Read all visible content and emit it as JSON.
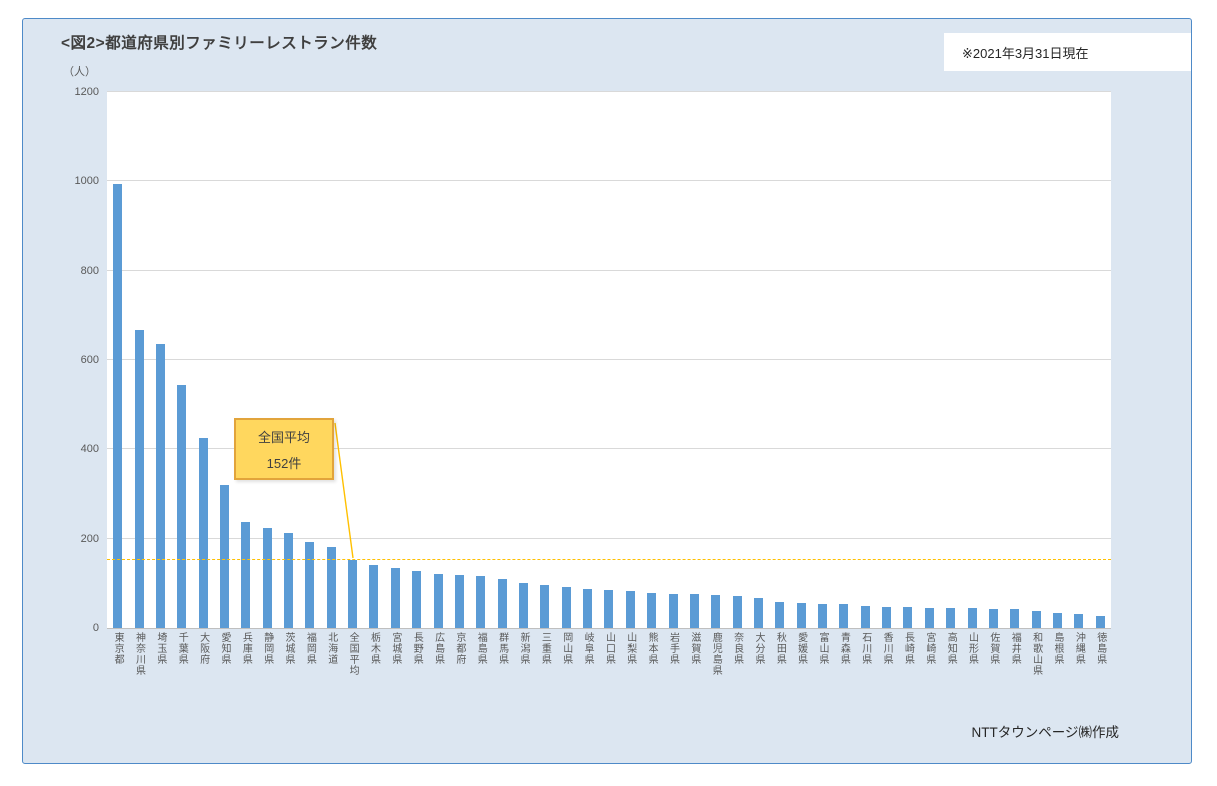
{
  "card": {
    "background": "#DCE6F1",
    "border_color": "#4E8AC8"
  },
  "header": {
    "title": "<図2>都道府県別ファミリーレストラン件数",
    "unit_label": "（人）",
    "date_note": "※2021年3月31日現在"
  },
  "footer": {
    "credit": "NTTタウンページ㈱作成"
  },
  "chart_data": {
    "type": "bar",
    "title": "<図2>都道府県別ファミリーレストラン件数",
    "ylabel": "（人）",
    "ylim": [
      0,
      1200
    ],
    "yticks": [
      0,
      200,
      400,
      600,
      800,
      1000,
      1200
    ],
    "grid": true,
    "legend": "none",
    "bar_color": "#5B9BD5",
    "categories": [
      "東京都",
      "神奈川県",
      "埼玉県",
      "千葉県",
      "大阪府",
      "愛知県",
      "兵庫県",
      "静岡県",
      "茨城県",
      "福岡県",
      "北海道",
      "全国平均",
      "栃木県",
      "宮城県",
      "長野県",
      "広島県",
      "京都府",
      "福島県",
      "群馬県",
      "新潟県",
      "三重県",
      "岡山県",
      "岐阜県",
      "山口県",
      "山梨県",
      "熊本県",
      "岩手県",
      "滋賀県",
      "鹿児島県",
      "奈良県",
      "大分県",
      "秋田県",
      "愛媛県",
      "富山県",
      "青森県",
      "石川県",
      "香川県",
      "長崎県",
      "宮崎県",
      "高知県",
      "山形県",
      "佐賀県",
      "福井県",
      "和歌山県",
      "島根県",
      "沖縄県",
      "徳島県"
    ],
    "values": [
      993,
      667,
      636,
      545,
      425,
      320,
      237,
      224,
      213,
      193,
      181,
      152,
      141,
      135,
      128,
      120,
      119,
      116,
      109,
      100,
      97,
      91,
      87,
      86,
      82,
      78,
      76,
      75,
      74,
      71,
      67,
      58,
      55,
      54,
      53,
      49,
      48,
      47,
      45,
      44,
      44,
      43,
      42,
      37,
      34,
      31,
      26
    ],
    "average_line": {
      "value": 152,
      "color": "#FFC000",
      "style": "dashed"
    },
    "annotation": {
      "lines": [
        "全国平均",
        "152件"
      ],
      "fill": "#FFD75E",
      "border_color": "#E2A43B",
      "target_category": "全国平均"
    }
  }
}
